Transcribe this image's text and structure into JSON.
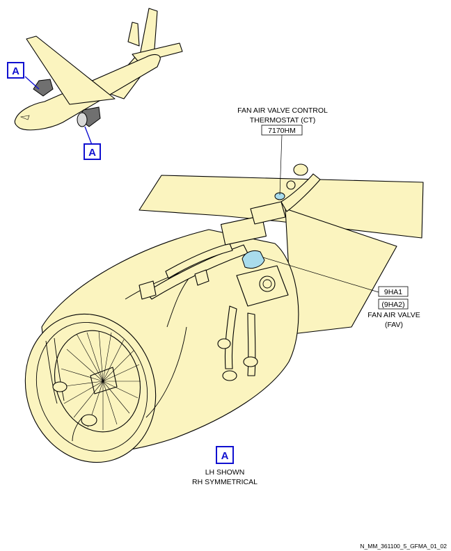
{
  "callouts": {
    "top_left": "A",
    "bottom_left": "A",
    "view": "A"
  },
  "thermostat": {
    "line1": "FAN AIR VALVE CONTROL",
    "line2": "THERMOSTAT (CT)",
    "ref": "7170HM"
  },
  "valve": {
    "ref1": "9HA1",
    "ref2": "(9HA2)",
    "line1": "FAN AIR VALVE",
    "line2": "(FAV)"
  },
  "view_note": {
    "line1": "LH SHOWN",
    "line2": "RH SYMMETRICAL"
  },
  "footer": "N_MM_361100_5_GFMA_01_02",
  "colors": {
    "fill": "#fbf4bf",
    "callout": "#1010d0",
    "highlight": "#a9dcec"
  }
}
